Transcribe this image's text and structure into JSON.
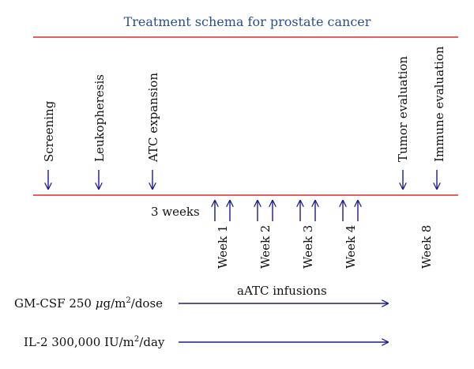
{
  "title": "Treatment schema for prostate cancer",
  "colors": {
    "title": "#2a4f8c",
    "rule": "#d92b2b",
    "arrow": "#1a1a8c",
    "text": "#111111"
  },
  "top_events": [
    {
      "id": "screening",
      "label": "Screening"
    },
    {
      "id": "leukopheresis",
      "label": "Leukopheresis"
    },
    {
      "id": "atc-expansion",
      "label": "ATC expansion"
    },
    {
      "id": "tumor-evaluation",
      "label": "Tumor evaluation"
    },
    {
      "id": "immune-evaluation",
      "label": "Immune evaluation"
    }
  ],
  "interval_label": "3 weeks",
  "weeks": [
    {
      "id": "week-1",
      "label": "Week 1",
      "infusion_arrows": 2
    },
    {
      "id": "week-2",
      "label": "Week 2",
      "infusion_arrows": 2
    },
    {
      "id": "week-3",
      "label": "Week 3",
      "infusion_arrows": 2
    },
    {
      "id": "week-4",
      "label": "Week 4",
      "infusion_arrows": 2
    },
    {
      "id": "week-8",
      "label": "Week 8",
      "infusion_arrows": 0
    }
  ],
  "infusions_label": "aATC infusions",
  "treatments": {
    "gmcsf": {
      "prefix": "GM-CSF 250 ",
      "mu": "μ",
      "unit": "g/m",
      "sup": "2",
      "suffix": "/dose"
    },
    "il2": {
      "prefix": "IL-2 300,000 IU/m",
      "sup": "2",
      "suffix": "/day"
    }
  }
}
